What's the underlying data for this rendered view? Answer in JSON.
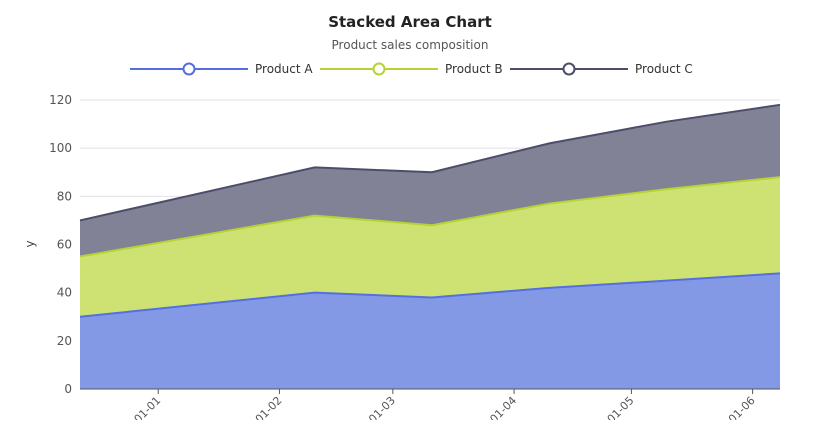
{
  "chart_data": {
    "type": "area",
    "stacked": true,
    "title": "Stacked Area Chart",
    "subtitle": "Product sales composition",
    "ylabel": "y",
    "xlabel": "",
    "ylim": [
      0,
      120
    ],
    "yticks": [
      0,
      20,
      40,
      60,
      80,
      100,
      120
    ],
    "grid": true,
    "legend_position": "top",
    "x": [
      "2023-12-12",
      "2024-02-10",
      "2024-03-11",
      "2024-04-10",
      "2024-05-10",
      "2024-06-08"
    ],
    "xticks": [
      "2024-01-01",
      "2024-02-01",
      "2024-03-01",
      "2024-04-01",
      "2024-05-01",
      "2024-06-01"
    ],
    "xtick_labels": [
      "01-01",
      "01-02",
      "01-03",
      "01-04",
      "01-05",
      "01-06"
    ],
    "series": [
      {
        "name": "Product A",
        "values": [
          30,
          40,
          38,
          42,
          45,
          48
        ],
        "color": "#5470e0",
        "fill": "#8399e6"
      },
      {
        "name": "Product B",
        "values": [
          25,
          32,
          30,
          35,
          38,
          40
        ],
        "color": "#b5d334",
        "fill": "#cde272"
      },
      {
        "name": "Product C",
        "values": [
          15,
          20,
          22,
          25,
          28,
          30
        ],
        "color": "#4d4d6b",
        "fill": "#828296"
      }
    ]
  }
}
